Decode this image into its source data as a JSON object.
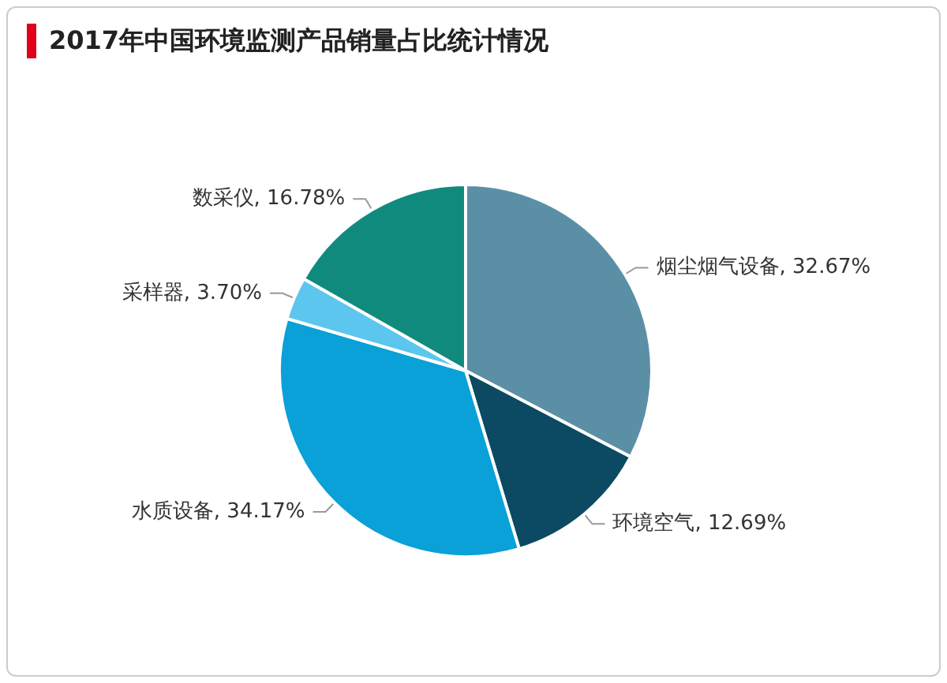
{
  "chart_data": {
    "type": "pie",
    "title": "2017年中国环境监测产品销量占比统计情况",
    "categories": [
      "烟尘烟气设备",
      "环境空气",
      "水质设备",
      "采样器",
      "数采仪"
    ],
    "values": [
      32.67,
      12.69,
      34.17,
      3.7,
      16.78
    ],
    "value_labels": [
      "32.67%",
      "12.69%",
      "34.17%",
      "3.70%",
      "16.78%"
    ],
    "colors": [
      "#5b8fa6",
      "#0b4a62",
      "#0aa0d8",
      "#5cc6ee",
      "#118a7e"
    ],
    "legend": false
  }
}
